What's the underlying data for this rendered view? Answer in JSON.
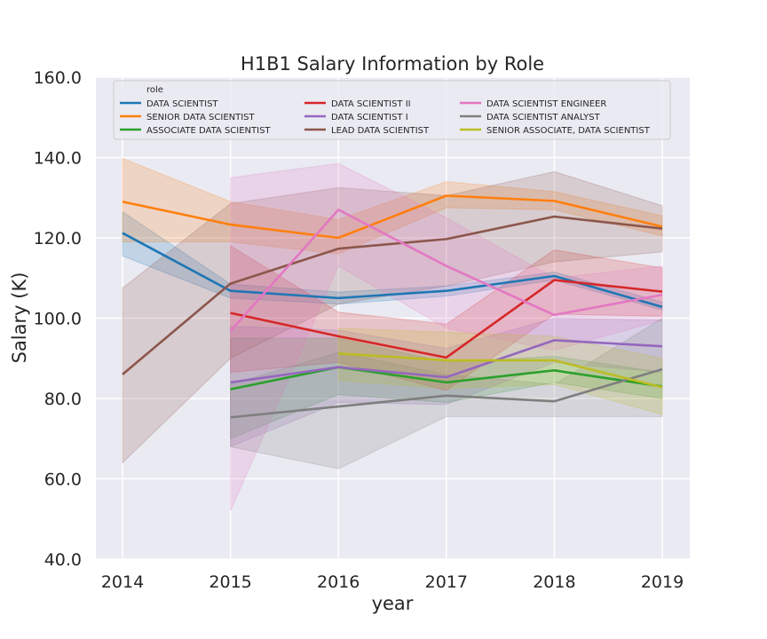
{
  "chart_data": {
    "type": "line",
    "title": "H1B1 Salary Information by Role",
    "xlabel": "year",
    "ylabel": "Salary (K)",
    "x": [
      2014,
      2015,
      2016,
      2017,
      2018,
      2019
    ],
    "x_tick_labels": [
      "2014",
      "2015",
      "2016",
      "2017",
      "2018",
      "2019"
    ],
    "ylim": [
      40,
      160
    ],
    "y_ticks": [
      40,
      60,
      80,
      100,
      120,
      140,
      160
    ],
    "y_tick_labels": [
      "40.0",
      "60.0",
      "80.0",
      "100.0",
      "120.0",
      "140.0",
      "160.0"
    ],
    "grid": true,
    "legend_title": "role",
    "legend_position": "top",
    "series": [
      {
        "name": "DATA SCIENTIST",
        "color": "#1f77b4",
        "values": [
          121.2,
          106.8,
          105.0,
          106.8,
          110.5,
          102.8
        ],
        "lower": [
          115.5,
          105.0,
          103.5,
          105.5,
          109.5,
          102.0
        ],
        "upper": [
          126.5,
          108.5,
          106.5,
          108.0,
          111.5,
          104.0
        ]
      },
      {
        "name": "SENIOR DATA SCIENTIST",
        "color": "#ff7f0e",
        "values": [
          129.0,
          123.3,
          120.0,
          130.5,
          129.2,
          122.8
        ],
        "lower": [
          119.0,
          119.0,
          116.0,
          127.5,
          127.0,
          120.5
        ],
        "upper": [
          139.8,
          129.0,
          124.5,
          134.0,
          131.5,
          125.5
        ]
      },
      {
        "name": "ASSOCIATE DATA SCIENTIST",
        "color": "#2ca02c",
        "values": [
          null,
          82.3,
          87.8,
          84.0,
          87.0,
          83.0
        ],
        "lower": [
          null,
          70.0,
          81.0,
          79.0,
          84.0,
          80.0
        ],
        "upper": [
          null,
          95.0,
          95.0,
          89.0,
          90.5,
          86.5
        ]
      },
      {
        "name": "DATA SCIENTIST II",
        "color": "#d62728",
        "values": [
          null,
          101.3,
          95.5,
          90.2,
          109.5,
          106.6
        ],
        "lower": [
          null,
          86.5,
          89.0,
          82.0,
          101.0,
          100.5
        ],
        "upper": [
          null,
          118.0,
          101.5,
          98.5,
          117.0,
          112.5
        ]
      },
      {
        "name": "DATA SCIENTIST I",
        "color": "#9467bd",
        "values": [
          null,
          84.0,
          87.8,
          85.3,
          94.5,
          93.0
        ],
        "lower": [
          null,
          68.0,
          79.0,
          78.5,
          89.0,
          86.5
        ],
        "upper": [
          null,
          98.0,
          97.0,
          92.5,
          100.0,
          99.5
        ]
      },
      {
        "name": "LEAD DATA SCIENTIST",
        "color": "#8c564b",
        "values": [
          86.0,
          108.6,
          117.3,
          119.7,
          125.3,
          122.3
        ],
        "lower": [
          64.0,
          90.0,
          103.5,
          108.0,
          114.0,
          116.5
        ],
        "upper": [
          107.5,
          128.5,
          132.5,
          130.5,
          136.5,
          128.0
        ]
      },
      {
        "name": "DATA SCIENTIST ENGINEER",
        "color": "#e377c2",
        "values": [
          null,
          96.8,
          127.0,
          113.0,
          100.8,
          105.8
        ],
        "lower": [
          null,
          52.0,
          113.0,
          97.5,
          92.0,
          99.5
        ],
        "upper": [
          null,
          135.0,
          138.5,
          125.0,
          110.0,
          113.0
        ]
      },
      {
        "name": "DATA SCIENTIST ANALYST",
        "color": "#7f7f7f",
        "values": [
          null,
          75.3,
          78.0,
          80.7,
          79.3,
          87.3
        ],
        "lower": [
          null,
          68.0,
          62.5,
          75.5,
          75.5,
          75.5
        ],
        "upper": [
          null,
          83.5,
          91.5,
          86.0,
          83.5,
          100.0
        ]
      },
      {
        "name": "SENIOR ASSOCIATE, DATA SCIENTIST",
        "color": "#bcbd22",
        "values": [
          null,
          null,
          91.2,
          89.5,
          89.5,
          82.8
        ],
        "lower": [
          null,
          null,
          84.5,
          82.5,
          83.5,
          76.0
        ],
        "upper": [
          null,
          null,
          97.5,
          96.5,
          95.5,
          90.0
        ]
      }
    ]
  }
}
